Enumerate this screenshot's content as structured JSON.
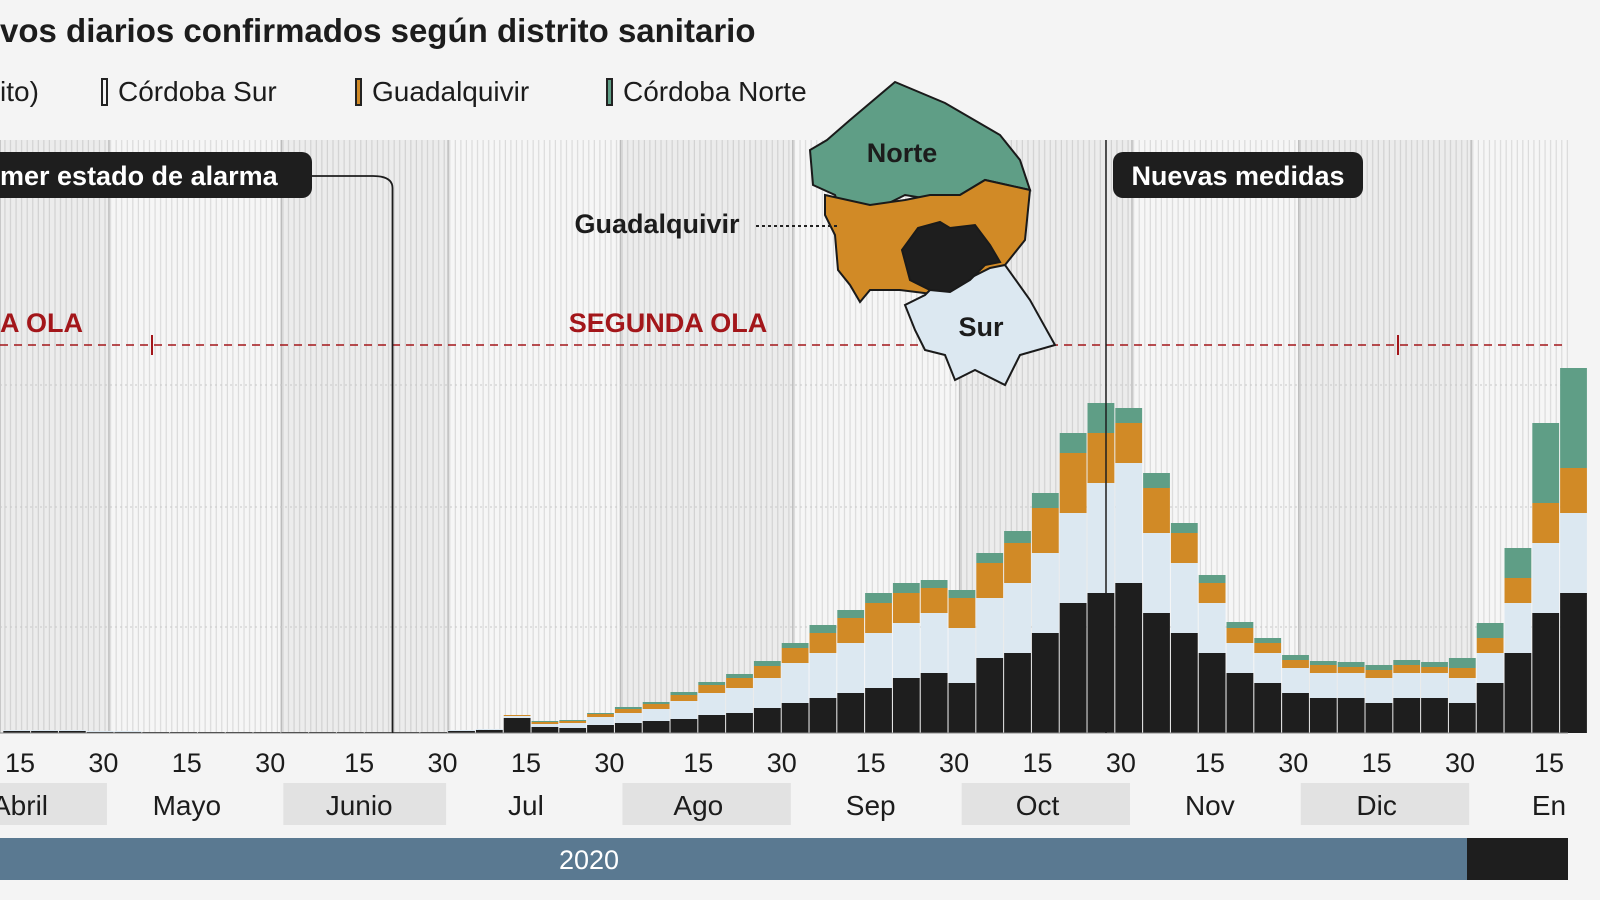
{
  "chart_data": {
    "type": "bar",
    "stacked": true,
    "title": "vos diarios confirmados según distrito sanitario",
    "legend": [
      {
        "name": "ito)",
        "color": "#1e1e1e"
      },
      {
        "name": "Córdoba Sur",
        "color": "#dce8f1"
      },
      {
        "name": "Guadalquivir",
        "color": "#d18a26"
      },
      {
        "name": "Córdoba Norte",
        "color": "#5f9e86"
      }
    ],
    "legend_placement": "top-left",
    "bin_start_dates": [
      "2020-04-12",
      "2020-04-17",
      "2020-04-22",
      "2020-04-27",
      "2020-05-02",
      "2020-05-07",
      "2020-05-12",
      "2020-05-17",
      "2020-05-22",
      "2020-05-27",
      "2020-06-01",
      "2020-06-06",
      "2020-06-11",
      "2020-06-16",
      "2020-06-21",
      "2020-06-26",
      "2020-07-01",
      "2020-07-06",
      "2020-07-11",
      "2020-07-16",
      "2020-07-21",
      "2020-07-26",
      "2020-07-31",
      "2020-08-05",
      "2020-08-10",
      "2020-08-15",
      "2020-08-20",
      "2020-08-25",
      "2020-08-30",
      "2020-09-04",
      "2020-09-09",
      "2020-09-14",
      "2020-09-19",
      "2020-09-24",
      "2020-09-29",
      "2020-10-04",
      "2020-10-09",
      "2020-10-14",
      "2020-10-19",
      "2020-10-24",
      "2020-10-29",
      "2020-11-03",
      "2020-11-08",
      "2020-11-13",
      "2020-11-18",
      "2020-11-23",
      "2020-11-28",
      "2020-12-03",
      "2020-12-08",
      "2020-12-13",
      "2020-12-18",
      "2020-12-23",
      "2020-12-28",
      "2021-01-02",
      "2021-01-07",
      "2021-01-12",
      "2021-01-17"
    ],
    "series": [
      {
        "key": "distrito",
        "color": "#1e1e1e",
        "values": [
          2,
          2,
          2,
          1,
          1,
          1,
          1,
          1,
          1,
          1,
          1,
          1,
          1,
          1,
          1,
          1,
          2,
          3,
          15,
          6,
          5,
          8,
          10,
          12,
          14,
          18,
          20,
          25,
          30,
          35,
          40,
          45,
          55,
          60,
          50,
          75,
          80,
          100,
          130,
          140,
          150,
          120,
          100,
          80,
          60,
          50,
          40,
          35,
          35,
          30,
          35,
          35,
          30,
          50,
          80,
          120,
          140
        ]
      },
      {
        "key": "sur",
        "color": "#dce8f1",
        "values": [
          1,
          1,
          1,
          1,
          1,
          0,
          0,
          0,
          0,
          0,
          0,
          0,
          0,
          0,
          0,
          0,
          1,
          1,
          2,
          3,
          5,
          8,
          10,
          12,
          18,
          22,
          25,
          30,
          40,
          45,
          50,
          55,
          55,
          60,
          55,
          60,
          70,
          80,
          90,
          110,
          120,
          80,
          70,
          50,
          30,
          30,
          25,
          25,
          25,
          25,
          25,
          25,
          25,
          30,
          50,
          70,
          80
        ]
      },
      {
        "key": "guadalquivir",
        "color": "#d18a26",
        "values": [
          0,
          0,
          0,
          0,
          0,
          0,
          0,
          0,
          0,
          0,
          0,
          0,
          0,
          0,
          0,
          0,
          0,
          0,
          1,
          2,
          2,
          3,
          4,
          5,
          6,
          8,
          10,
          12,
          15,
          20,
          25,
          30,
          30,
          25,
          30,
          35,
          40,
          45,
          60,
          50,
          40,
          45,
          30,
          20,
          15,
          10,
          8,
          8,
          6,
          8,
          8,
          6,
          10,
          15,
          25,
          40,
          45
        ]
      },
      {
        "key": "norte",
        "color": "#5f9e86",
        "values": [
          0,
          0,
          0,
          0,
          0,
          0,
          0,
          0,
          0,
          0,
          0,
          0,
          0,
          0,
          0,
          0,
          0,
          0,
          0,
          1,
          1,
          1,
          2,
          2,
          3,
          3,
          4,
          5,
          5,
          8,
          8,
          10,
          10,
          8,
          8,
          10,
          12,
          15,
          20,
          30,
          15,
          15,
          10,
          8,
          6,
          5,
          5,
          4,
          5,
          5,
          5,
          5,
          10,
          15,
          30,
          80,
          100
        ]
      }
    ],
    "ylim": [
      0,
      593
    ],
    "grid": true,
    "x_ticks": [
      {
        "label": "15",
        "date": "2020-04-15"
      },
      {
        "label": "30",
        "date": "2020-04-30"
      },
      {
        "label": "15",
        "date": "2020-05-15"
      },
      {
        "label": "30",
        "date": "2020-05-30"
      },
      {
        "label": "15",
        "date": "2020-06-15"
      },
      {
        "label": "30",
        "date": "2020-06-30"
      },
      {
        "label": "15",
        "date": "2020-07-15"
      },
      {
        "label": "30",
        "date": "2020-07-30"
      },
      {
        "label": "15",
        "date": "2020-08-15"
      },
      {
        "label": "30",
        "date": "2020-08-30"
      },
      {
        "label": "15",
        "date": "2020-09-15"
      },
      {
        "label": "30",
        "date": "2020-09-30"
      },
      {
        "label": "15",
        "date": "2020-10-15"
      },
      {
        "label": "30",
        "date": "2020-10-30"
      },
      {
        "label": "15",
        "date": "2020-11-15"
      },
      {
        "label": "30",
        "date": "2020-11-30"
      },
      {
        "label": "15",
        "date": "2020-12-15"
      },
      {
        "label": "30",
        "date": "2020-12-30"
      },
      {
        "label": "15",
        "date": "2021-01-15"
      }
    ],
    "months": [
      {
        "label": "Abril",
        "start": "2020-04-01",
        "end": "2020-05-01",
        "shaded": true
      },
      {
        "label": "Mayo",
        "start": "2020-05-01",
        "end": "2020-06-01",
        "shaded": false
      },
      {
        "label": "Junio",
        "start": "2020-06-01",
        "end": "2020-07-01",
        "shaded": true
      },
      {
        "label": "Jul",
        "start": "2020-07-01",
        "end": "2020-08-01",
        "shaded": false
      },
      {
        "label": "Ago",
        "start": "2020-08-01",
        "end": "2020-09-01",
        "shaded": true
      },
      {
        "label": "Sep",
        "start": "2020-09-01",
        "end": "2020-10-01",
        "shaded": false
      },
      {
        "label": "Oct",
        "start": "2020-10-01",
        "end": "2020-11-01",
        "shaded": true
      },
      {
        "label": "Nov",
        "start": "2020-11-01",
        "end": "2020-12-01",
        "shaded": false
      },
      {
        "label": "Dic",
        "start": "2020-12-01",
        "end": "2021-01-01",
        "shaded": true
      },
      {
        "label": "En",
        "start": "2021-01-01",
        "end": "2021-02-01",
        "shaded": false
      }
    ],
    "years": [
      {
        "label": "2020",
        "color": "#5a7991"
      },
      {
        "label": "",
        "color": "#1e1e1e"
      }
    ],
    "annotations": {
      "alarm": {
        "text": "mer estado de alarma",
        "date": "2020-06-21"
      },
      "measures": {
        "text": "Nuevas medidas",
        "date": "2020-10-29"
      },
      "wave1": {
        "text": "A OLA"
      },
      "wave2": {
        "text": "SEGUNDA OLA"
      },
      "wave_color": "#a3161a"
    },
    "map_labels": {
      "norte": "Norte",
      "guadalquivir": "Guadalquivir",
      "sur": "Sur"
    }
  }
}
